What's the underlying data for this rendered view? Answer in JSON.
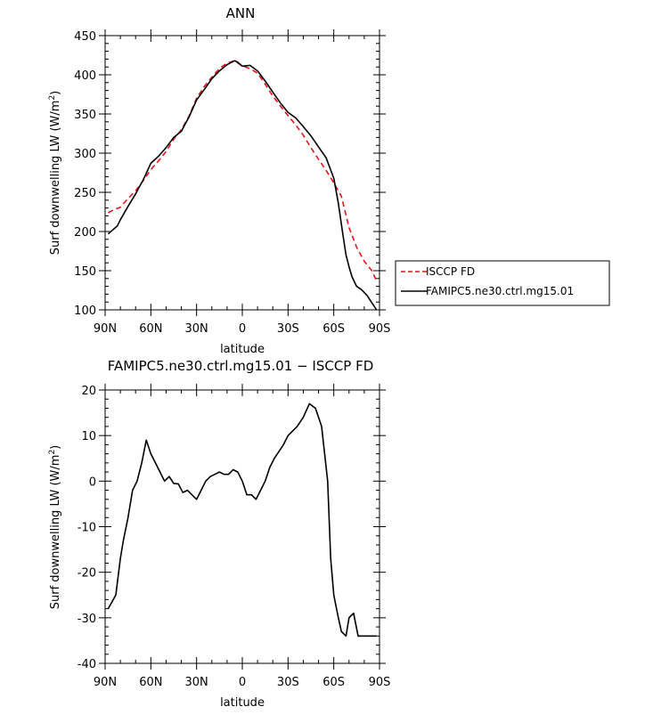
{
  "chart_data": [
    {
      "type": "line",
      "title": "ANN",
      "xlabel": "latitude",
      "ylabel": "Surf downwelling LW (W/m²)",
      "ylabel_parts": {
        "main": "Surf downwelling LW (W/m",
        "sup": "2",
        "end": ")"
      },
      "xlim": [
        90,
        -90
      ],
      "ylim": [
        100,
        450
      ],
      "x_tick_values": [
        90,
        60,
        30,
        0,
        -30,
        -60,
        -90
      ],
      "x_ticks": [
        "90N",
        "60N",
        "30N",
        "0",
        "30S",
        "60S",
        "90S"
      ],
      "y_ticks": [
        100,
        150,
        200,
        250,
        300,
        350,
        400,
        450
      ],
      "legend_position": "right",
      "series": [
        {
          "name": "ISCCP FD",
          "color": "#e8121b",
          "dash": "dashed",
          "x": [
            88,
            85,
            80,
            75,
            70,
            65,
            60,
            55,
            50,
            45,
            40,
            35,
            30,
            25,
            20,
            15,
            10,
            5,
            0,
            -5,
            -10,
            -15,
            -20,
            -25,
            -30,
            -35,
            -40,
            -45,
            -50,
            -55,
            -60,
            -65,
            -70,
            -75,
            -80,
            -85,
            -88
          ],
          "y": [
            224,
            227,
            231,
            242,
            252,
            265,
            279,
            290,
            302,
            318,
            330,
            347,
            370,
            385,
            397,
            408,
            415,
            418,
            411,
            408,
            402,
            388,
            373,
            360,
            348,
            336,
            323,
            307,
            292,
            278,
            262,
            245,
            205,
            180,
            162,
            150,
            137
          ]
        },
        {
          "name": "FAMIPC5.ne30.ctrl.mg15.01",
          "color": "#000000",
          "dash": "solid",
          "x": [
            88,
            85,
            82,
            80,
            75,
            70,
            65,
            60,
            55,
            50,
            45,
            40,
            35,
            30,
            25,
            20,
            15,
            10,
            5,
            3,
            0,
            -5,
            -10,
            -15,
            -20,
            -25,
            -30,
            -35,
            -40,
            -45,
            -50,
            -55,
            -60,
            -63,
            -66,
            -68,
            -70,
            -72,
            -75,
            -78,
            -80,
            -82,
            -84,
            -86,
            -88
          ],
          "y": [
            197,
            202,
            207,
            215,
            232,
            248,
            266,
            287,
            296,
            307,
            320,
            328,
            346,
            368,
            381,
            395,
            405,
            413,
            418,
            416,
            411,
            412,
            405,
            392,
            378,
            364,
            352,
            345,
            334,
            322,
            308,
            294,
            268,
            236,
            196,
            170,
            155,
            142,
            130,
            126,
            122,
            118,
            112,
            106,
            100
          ]
        }
      ]
    },
    {
      "type": "line",
      "title": "FAMIPC5.ne30.ctrl.mg15.01 − ISCCP FD",
      "xlabel": "latitude",
      "ylabel": "Surf downwelling LW (W/m²)",
      "ylabel_parts": {
        "main": "Surf downwelling LW (W/m",
        "sup": "2",
        "end": ")"
      },
      "xlim": [
        90,
        -90
      ],
      "ylim": [
        -40,
        20
      ],
      "x_tick_values": [
        90,
        60,
        30,
        0,
        -30,
        -60,
        -90
      ],
      "x_ticks": [
        "90N",
        "60N",
        "30N",
        "0",
        "30S",
        "60S",
        "90S"
      ],
      "y_ticks": [
        -40,
        -30,
        -20,
        -10,
        0,
        10,
        20
      ],
      "series": [
        {
          "color": "#000000",
          "x": [
            88,
            83,
            80,
            78,
            75,
            72,
            69,
            66,
            63,
            60,
            57,
            54,
            51,
            48,
            45,
            42,
            39,
            36,
            33,
            30,
            27,
            24,
            21,
            18,
            15,
            12,
            9,
            6,
            3,
            0,
            -3,
            -6,
            -9,
            -12,
            -15,
            -18,
            -21,
            -24,
            -27,
            -30,
            -33,
            -36,
            -40,
            -44,
            -48,
            -52,
            -56,
            -58,
            -60,
            -63,
            -65,
            -68,
            -70,
            -73,
            -76,
            -79,
            -82,
            -86,
            -88
          ],
          "y": [
            -28,
            -25,
            -17,
            -13,
            -8,
            -2,
            0,
            4,
            9,
            6,
            4,
            2,
            0,
            1,
            -0.5,
            -0.6,
            -2.5,
            -2,
            -3,
            -4,
            -2,
            0,
            1,
            1.5,
            2,
            1.5,
            1.5,
            2.5,
            2,
            0,
            -3,
            -3,
            -4,
            -2,
            0,
            3,
            5,
            6.5,
            8,
            10,
            11,
            12,
            14,
            17,
            16,
            12,
            0,
            -17,
            -25,
            -30,
            -33,
            -34,
            -30,
            -29,
            -34,
            -34,
            -34,
            -34,
            -34
          ]
        }
      ]
    }
  ]
}
